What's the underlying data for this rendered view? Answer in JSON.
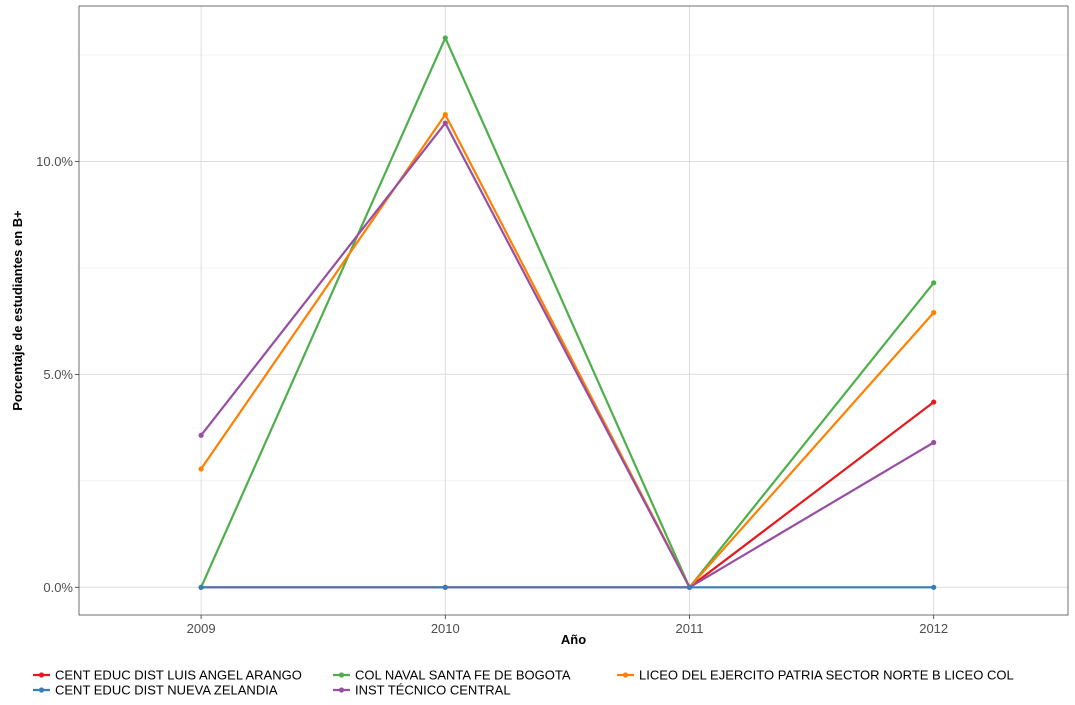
{
  "chart_data": {
    "type": "line",
    "title": "",
    "xlabel": "Año",
    "ylabel": "Porcentaje de estudiantes en B+",
    "x": [
      2009,
      2010,
      2011,
      2012
    ],
    "x_tick_labels": [
      "2009",
      "2010",
      "2011",
      "2012"
    ],
    "xlim": [
      2008.5,
      2012.55
    ],
    "ylim": [
      -0.65,
      13.65
    ],
    "y_ticks": [
      0,
      5,
      10
    ],
    "y_tick_labels": [
      "0.0%",
      "5.0%",
      "10.0%"
    ],
    "y_minor_ticks": [
      2.5,
      7.5,
      12.5
    ],
    "grid": true,
    "legend_position": "bottom",
    "series": [
      {
        "name": "CENT EDUC DIST LUIS ANGEL ARANGO",
        "color": "#e41a1c",
        "values": [
          0,
          0,
          0,
          4.35
        ]
      },
      {
        "name": "CENT EDUC DIST NUEVA ZELANDIA",
        "color": "#377eb8",
        "values": [
          0,
          0,
          0,
          0
        ]
      },
      {
        "name": "COL NAVAL SANTA FE DE BOGOTA",
        "color": "#4daf4a",
        "values": [
          0,
          12.9,
          0,
          7.15
        ]
      },
      {
        "name": "INST TÉCNICO CENTRAL",
        "color": "#984ea3",
        "values": [
          3.57,
          10.9,
          0,
          3.4
        ]
      },
      {
        "name": "LICEO DEL EJERCITO PATRIA SECTOR NORTE B LICEO COL",
        "color": "#ff7f00",
        "values": [
          2.78,
          11.1,
          0,
          6.45
        ]
      }
    ],
    "legend_layout": [
      [
        0,
        2,
        4
      ],
      [
        1,
        3
      ]
    ]
  }
}
